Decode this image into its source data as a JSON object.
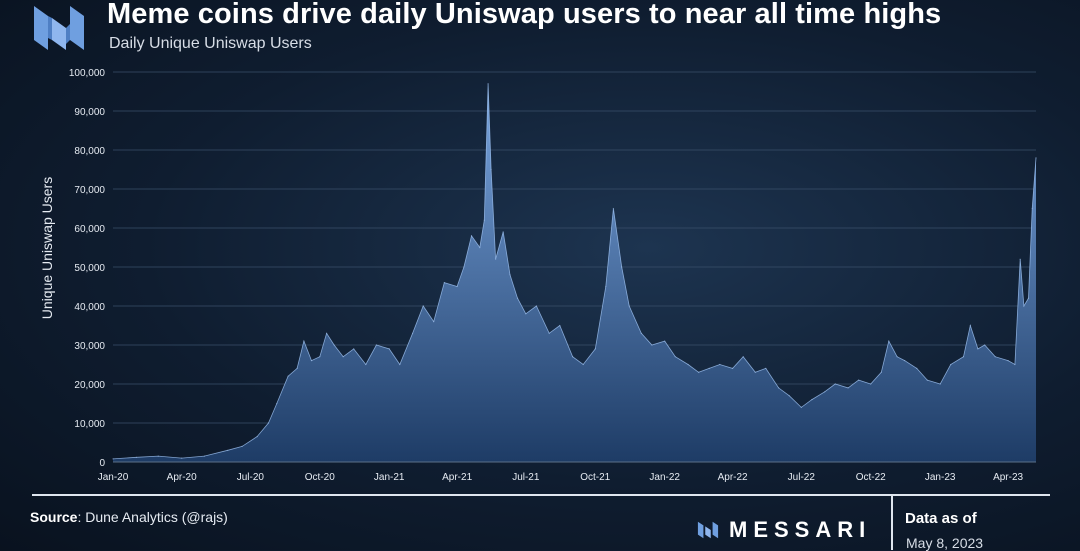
{
  "header": {
    "title": "Meme coins drive daily Uniswap users to near all time highs",
    "subtitle": "Daily Unique Uniswap Users"
  },
  "footer": {
    "source_label": "Source",
    "source_text": ": Dune Analytics (@rajs)",
    "brand": "MESSARI",
    "data_as_of_label": "Data as of",
    "data_as_of_date": "May 8, 2023"
  },
  "colors": {
    "area_top": "#7aa6e0",
    "area_bottom": "#1e3c66",
    "grid": "#3a4f6a",
    "text": "#e6ebf2",
    "logo": "#6f9fe0"
  },
  "chart_data": {
    "type": "area",
    "title": "Daily Unique Uniswap Users",
    "xlabel": "",
    "ylabel": "Unique Uniswap Users",
    "ylim": [
      0,
      100000
    ],
    "yticks": [
      0,
      10000,
      20000,
      30000,
      40000,
      50000,
      60000,
      70000,
      80000,
      90000,
      100000
    ],
    "ytick_labels": [
      "0",
      "10,000",
      "20,000",
      "30,000",
      "40,000",
      "50,000",
      "60,000",
      "70,000",
      "80,000",
      "90,000",
      "100,000"
    ],
    "xlim": [
      "2020-01-01",
      "2023-05-08"
    ],
    "xticks": [
      "2020-01-01",
      "2020-04-01",
      "2020-07-01",
      "2020-10-01",
      "2021-01-01",
      "2021-04-01",
      "2021-07-01",
      "2021-10-01",
      "2022-01-01",
      "2022-04-01",
      "2022-07-01",
      "2022-10-01",
      "2023-01-01",
      "2023-04-01"
    ],
    "xtick_labels": [
      "Jan-20",
      "Apr-20",
      "Jul-20",
      "Oct-20",
      "Jan-21",
      "Apr-21",
      "Jul-21",
      "Oct-21",
      "Jan-22",
      "Apr-22",
      "Jul-22",
      "Oct-22",
      "Jan-23",
      "Apr-23"
    ],
    "grid": true,
    "legend": "none",
    "series": [
      {
        "name": "",
        "points": [
          [
            "2020-01-01",
            800
          ],
          [
            "2020-02-01",
            1200
          ],
          [
            "2020-03-01",
            1500
          ],
          [
            "2020-04-01",
            1000
          ],
          [
            "2020-05-01",
            1500
          ],
          [
            "2020-06-01",
            3000
          ],
          [
            "2020-06-20",
            4000
          ],
          [
            "2020-07-10",
            6500
          ],
          [
            "2020-07-25",
            10000
          ],
          [
            "2020-08-05",
            15000
          ],
          [
            "2020-08-20",
            22000
          ],
          [
            "2020-09-01",
            24000
          ],
          [
            "2020-09-10",
            31000
          ],
          [
            "2020-09-20",
            26000
          ],
          [
            "2020-10-01",
            27000
          ],
          [
            "2020-10-10",
            33000
          ],
          [
            "2020-10-20",
            30000
          ],
          [
            "2020-11-01",
            27000
          ],
          [
            "2020-11-15",
            29000
          ],
          [
            "2020-12-01",
            25000
          ],
          [
            "2020-12-15",
            30000
          ],
          [
            "2021-01-01",
            29000
          ],
          [
            "2021-01-15",
            25000
          ],
          [
            "2021-02-01",
            33000
          ],
          [
            "2021-02-15",
            40000
          ],
          [
            "2021-03-01",
            36000
          ],
          [
            "2021-03-15",
            46000
          ],
          [
            "2021-04-01",
            45000
          ],
          [
            "2021-04-10",
            50000
          ],
          [
            "2021-04-20",
            58000
          ],
          [
            "2021-05-01",
            55000
          ],
          [
            "2021-05-07",
            62000
          ],
          [
            "2021-05-12",
            97000
          ],
          [
            "2021-05-16",
            75000
          ],
          [
            "2021-05-22",
            52000
          ],
          [
            "2021-06-01",
            59000
          ],
          [
            "2021-06-10",
            48000
          ],
          [
            "2021-06-20",
            42000
          ],
          [
            "2021-07-01",
            38000
          ],
          [
            "2021-07-15",
            40000
          ],
          [
            "2021-08-01",
            33000
          ],
          [
            "2021-08-15",
            35000
          ],
          [
            "2021-09-01",
            27000
          ],
          [
            "2021-09-15",
            25000
          ],
          [
            "2021-10-01",
            29000
          ],
          [
            "2021-10-15",
            45000
          ],
          [
            "2021-10-25",
            65000
          ],
          [
            "2021-11-05",
            50000
          ],
          [
            "2021-11-15",
            40000
          ],
          [
            "2021-12-01",
            33000
          ],
          [
            "2021-12-15",
            30000
          ],
          [
            "2022-01-01",
            31000
          ],
          [
            "2022-01-15",
            27000
          ],
          [
            "2022-02-01",
            25000
          ],
          [
            "2022-02-15",
            23000
          ],
          [
            "2022-03-01",
            24000
          ],
          [
            "2022-03-15",
            25000
          ],
          [
            "2022-04-01",
            24000
          ],
          [
            "2022-04-15",
            27000
          ],
          [
            "2022-05-01",
            23000
          ],
          [
            "2022-05-15",
            24000
          ],
          [
            "2022-06-01",
            19000
          ],
          [
            "2022-06-15",
            17000
          ],
          [
            "2022-07-01",
            14000
          ],
          [
            "2022-07-15",
            16000
          ],
          [
            "2022-08-01",
            18000
          ],
          [
            "2022-08-15",
            20000
          ],
          [
            "2022-09-01",
            19000
          ],
          [
            "2022-09-15",
            21000
          ],
          [
            "2022-10-01",
            20000
          ],
          [
            "2022-10-15",
            23000
          ],
          [
            "2022-10-25",
            31000
          ],
          [
            "2022-11-05",
            27000
          ],
          [
            "2022-11-15",
            26000
          ],
          [
            "2022-12-01",
            24000
          ],
          [
            "2022-12-15",
            21000
          ],
          [
            "2023-01-01",
            20000
          ],
          [
            "2023-01-15",
            25000
          ],
          [
            "2023-02-01",
            27000
          ],
          [
            "2023-02-10",
            35000
          ],
          [
            "2023-02-20",
            29000
          ],
          [
            "2023-03-01",
            30000
          ],
          [
            "2023-03-15",
            27000
          ],
          [
            "2023-04-01",
            26000
          ],
          [
            "2023-04-10",
            25000
          ],
          [
            "2023-04-17",
            52000
          ],
          [
            "2023-04-22",
            40000
          ],
          [
            "2023-04-28",
            42000
          ],
          [
            "2023-05-03",
            65000
          ],
          [
            "2023-05-08",
            78000
          ]
        ]
      }
    ]
  }
}
